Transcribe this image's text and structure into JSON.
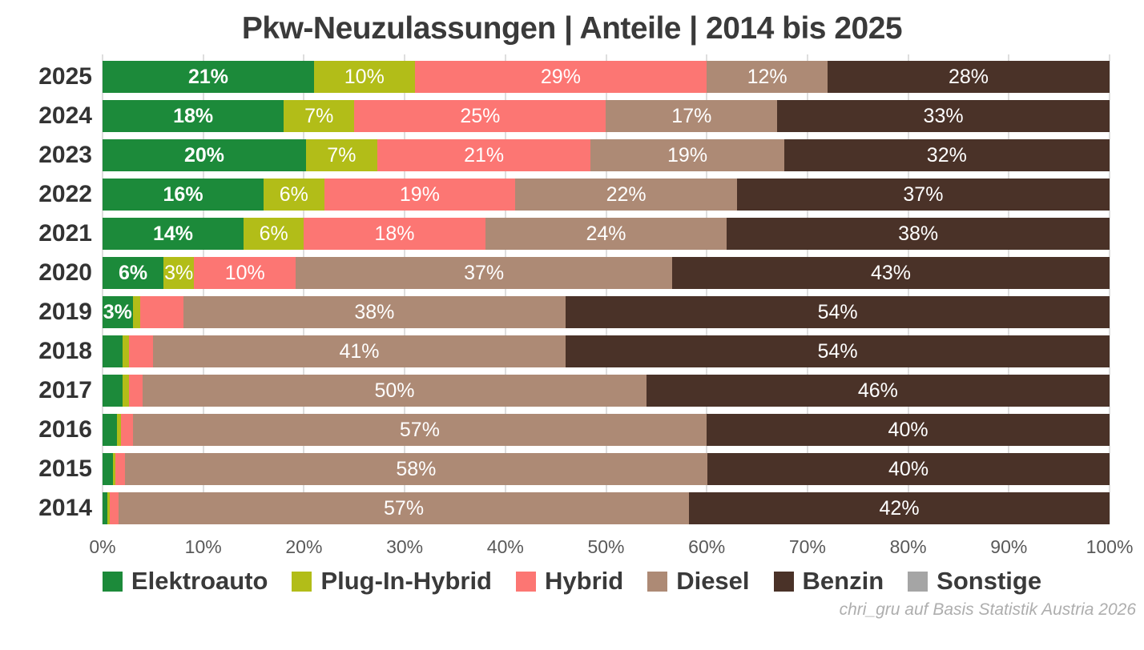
{
  "title": "Pkw-Neuzulassungen | Anteile | 2014 bis 2025",
  "attribution": "chri_gru auf Basis Statistik Austria 2026",
  "chart_data": {
    "type": "bar",
    "orientation": "horizontal-stacked",
    "title": "Pkw-Neuzulassungen | Anteile | 2014 bis 2025",
    "xlabel": "",
    "ylabel": "",
    "xlim": [
      0,
      100
    ],
    "grid": true,
    "legend_position": "bottom",
    "x_ticks": [
      "0%",
      "10%",
      "20%",
      "30%",
      "40%",
      "50%",
      "60%",
      "70%",
      "80%",
      "90%",
      "100%"
    ],
    "categories": [
      "2025",
      "2024",
      "2023",
      "2022",
      "2021",
      "2020",
      "2019",
      "2018",
      "2017",
      "2016",
      "2015",
      "2014"
    ],
    "legend": [
      {
        "label": "Elektroauto",
        "color": "#1c8a3a"
      },
      {
        "label": "Plug-In-Hybrid",
        "color": "#b2bd18"
      },
      {
        "label": "Hybrid",
        "color": "#fc7673"
      },
      {
        "label": "Diesel",
        "color": "#ad8a75"
      },
      {
        "label": "Benzin",
        "color": "#4a3228"
      },
      {
        "label": "Sonstige",
        "color": "#a5a5a5"
      }
    ],
    "rows": [
      {
        "year": "2025",
        "segments": [
          {
            "series": "Elektroauto",
            "value": 21,
            "label": "21%"
          },
          {
            "series": "Plug-In-Hybrid",
            "value": 10,
            "label": "10%"
          },
          {
            "series": "Hybrid",
            "value": 29,
            "label": "29%"
          },
          {
            "series": "Diesel",
            "value": 12,
            "label": "12%"
          },
          {
            "series": "Benzin",
            "value": 28,
            "label": "28%"
          },
          {
            "series": "Sonstige",
            "value": 0,
            "label": ""
          }
        ]
      },
      {
        "year": "2024",
        "segments": [
          {
            "series": "Elektroauto",
            "value": 18,
            "label": "18%"
          },
          {
            "series": "Plug-In-Hybrid",
            "value": 7,
            "label": "7%"
          },
          {
            "series": "Hybrid",
            "value": 25,
            "label": "25%"
          },
          {
            "series": "Diesel",
            "value": 17,
            "label": "17%"
          },
          {
            "series": "Benzin",
            "value": 33,
            "label": "33%"
          },
          {
            "series": "Sonstige",
            "value": 0,
            "label": ""
          }
        ]
      },
      {
        "year": "2023",
        "segments": [
          {
            "series": "Elektroauto",
            "value": 20,
            "label": "20%"
          },
          {
            "series": "Plug-In-Hybrid",
            "value": 7,
            "label": "7%"
          },
          {
            "series": "Hybrid",
            "value": 21,
            "label": "21%"
          },
          {
            "series": "Diesel",
            "value": 19,
            "label": "19%"
          },
          {
            "series": "Benzin",
            "value": 32,
            "label": "32%"
          },
          {
            "series": "Sonstige",
            "value": 0,
            "label": ""
          }
        ]
      },
      {
        "year": "2022",
        "segments": [
          {
            "series": "Elektroauto",
            "value": 16,
            "label": "16%"
          },
          {
            "series": "Plug-In-Hybrid",
            "value": 6,
            "label": "6%"
          },
          {
            "series": "Hybrid",
            "value": 19,
            "label": "19%"
          },
          {
            "series": "Diesel",
            "value": 22,
            "label": "22%"
          },
          {
            "series": "Benzin",
            "value": 37,
            "label": "37%"
          },
          {
            "series": "Sonstige",
            "value": 0,
            "label": ""
          }
        ]
      },
      {
        "year": "2021",
        "segments": [
          {
            "series": "Elektroauto",
            "value": 14,
            "label": "14%"
          },
          {
            "series": "Plug-In-Hybrid",
            "value": 6,
            "label": "6%"
          },
          {
            "series": "Hybrid",
            "value": 18,
            "label": "18%"
          },
          {
            "series": "Diesel",
            "value": 24,
            "label": "24%"
          },
          {
            "series": "Benzin",
            "value": 38,
            "label": "38%"
          },
          {
            "series": "Sonstige",
            "value": 0,
            "label": ""
          }
        ]
      },
      {
        "year": "2020",
        "segments": [
          {
            "series": "Elektroauto",
            "value": 6,
            "label": "6%"
          },
          {
            "series": "Plug-In-Hybrid",
            "value": 3,
            "label": "3%"
          },
          {
            "series": "Hybrid",
            "value": 10,
            "label": "10%"
          },
          {
            "series": "Diesel",
            "value": 37,
            "label": "37%"
          },
          {
            "series": "Benzin",
            "value": 43,
            "label": "43%"
          },
          {
            "series": "Sonstige",
            "value": 0,
            "label": ""
          }
        ]
      },
      {
        "year": "2019",
        "segments": [
          {
            "series": "Elektroauto",
            "value": 3,
            "label": "3%"
          },
          {
            "series": "Plug-In-Hybrid",
            "value": 0.7,
            "label": ""
          },
          {
            "series": "Hybrid",
            "value": 4.3,
            "label": ""
          },
          {
            "series": "Diesel",
            "value": 38,
            "label": "38%"
          },
          {
            "series": "Benzin",
            "value": 54,
            "label": "54%"
          },
          {
            "series": "Sonstige",
            "value": 0,
            "label": ""
          }
        ]
      },
      {
        "year": "2018",
        "segments": [
          {
            "series": "Elektroauto",
            "value": 2,
            "label": ""
          },
          {
            "series": "Plug-In-Hybrid",
            "value": 0.6,
            "label": ""
          },
          {
            "series": "Hybrid",
            "value": 2.4,
            "label": ""
          },
          {
            "series": "Diesel",
            "value": 41,
            "label": "41%"
          },
          {
            "series": "Benzin",
            "value": 54,
            "label": "54%"
          },
          {
            "series": "Sonstige",
            "value": 0,
            "label": ""
          }
        ]
      },
      {
        "year": "2017",
        "segments": [
          {
            "series": "Elektroauto",
            "value": 2,
            "label": ""
          },
          {
            "series": "Plug-In-Hybrid",
            "value": 0.6,
            "label": ""
          },
          {
            "series": "Hybrid",
            "value": 1.4,
            "label": ""
          },
          {
            "series": "Diesel",
            "value": 50,
            "label": "50%"
          },
          {
            "series": "Benzin",
            "value": 46,
            "label": "46%"
          },
          {
            "series": "Sonstige",
            "value": 0,
            "label": ""
          }
        ]
      },
      {
        "year": "2016",
        "segments": [
          {
            "series": "Elektroauto",
            "value": 1.4,
            "label": ""
          },
          {
            "series": "Plug-In-Hybrid",
            "value": 0.4,
            "label": ""
          },
          {
            "series": "Hybrid",
            "value": 1.2,
            "label": ""
          },
          {
            "series": "Diesel",
            "value": 57,
            "label": "57%"
          },
          {
            "series": "Benzin",
            "value": 40,
            "label": "40%"
          },
          {
            "series": "Sonstige",
            "value": 0,
            "label": ""
          }
        ]
      },
      {
        "year": "2015",
        "segments": [
          {
            "series": "Elektroauto",
            "value": 1,
            "label": ""
          },
          {
            "series": "Plug-In-Hybrid",
            "value": 0.3,
            "label": ""
          },
          {
            "series": "Hybrid",
            "value": 0.9,
            "label": ""
          },
          {
            "series": "Diesel",
            "value": 58,
            "label": "58%"
          },
          {
            "series": "Benzin",
            "value": 40,
            "label": "40%"
          },
          {
            "series": "Sonstige",
            "value": 0,
            "label": ""
          }
        ]
      },
      {
        "year": "2014",
        "segments": [
          {
            "series": "Elektroauto",
            "value": 0.5,
            "label": ""
          },
          {
            "series": "Plug-In-Hybrid",
            "value": 0.2,
            "label": ""
          },
          {
            "series": "Hybrid",
            "value": 0.9,
            "label": ""
          },
          {
            "series": "Diesel",
            "value": 57,
            "label": "57%"
          },
          {
            "series": "Benzin",
            "value": 42,
            "label": "42%"
          },
          {
            "series": "Sonstige",
            "value": 0,
            "label": ""
          }
        ]
      }
    ]
  }
}
